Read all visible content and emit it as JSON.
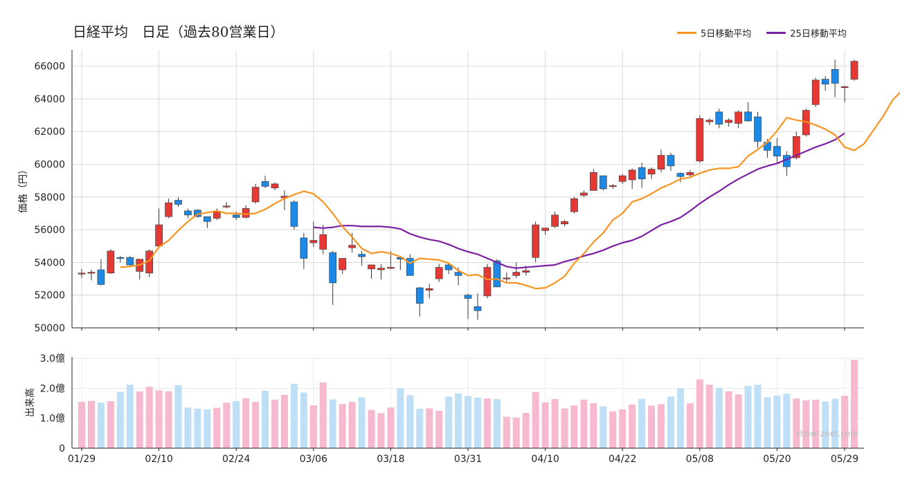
{
  "chart_data": [
    {
      "type": "candlestick",
      "title": "日経平均　日足（過去80営業日）",
      "ylabel": "価格（円）",
      "ylim": [
        50000,
        67000
      ],
      "yticks": [
        50000,
        52000,
        54000,
        56000,
        58000,
        60000,
        62000,
        64000,
        66000
      ],
      "grid": true,
      "legend": {
        "placement": "top-right",
        "entries": [
          "5日移動平均",
          "25日移動平均"
        ]
      },
      "colors": {
        "up": "#e53935",
        "down": "#1e88e5",
        "ma5": "#f7931e",
        "ma25": "#7b1fa2",
        "grid": "#d0d0d0"
      },
      "x_labels": [
        {
          "index": 0,
          "label": "01/29"
        },
        {
          "index": 8,
          "label": "02/10"
        },
        {
          "index": 16,
          "label": "02/24"
        },
        {
          "index": 24,
          "label": "03/06"
        },
        {
          "index": 32,
          "label": "03/18"
        },
        {
          "index": 40,
          "label": "03/31"
        },
        {
          "index": 48,
          "label": "04/10"
        },
        {
          "index": 56,
          "label": "04/22"
        },
        {
          "index": 64,
          "label": "05/08"
        },
        {
          "index": 72,
          "label": "05/20"
        },
        {
          "index": 79,
          "label": "05/29"
        }
      ],
      "ohlc": [
        [
          53300,
          53600,
          53050,
          53350
        ],
        [
          53350,
          53550,
          52900,
          53400
        ],
        [
          53550,
          54200,
          52600,
          52650
        ],
        [
          53350,
          54800,
          53300,
          54700
        ],
        [
          54300,
          54400,
          54000,
          54250
        ],
        [
          54300,
          54400,
          53700,
          53850
        ],
        [
          53450,
          54200,
          52950,
          54200
        ],
        [
          53350,
          54800,
          53100,
          54700
        ],
        [
          55000,
          57300,
          54900,
          56300
        ],
        [
          56800,
          57900,
          56700,
          57650
        ],
        [
          57800,
          58000,
          57400,
          57550
        ],
        [
          57150,
          57300,
          56700,
          56900
        ],
        [
          57200,
          57250,
          56750,
          56800
        ],
        [
          56800,
          56800,
          56100,
          56500
        ],
        [
          56700,
          57300,
          56600,
          57100
        ],
        [
          57400,
          57700,
          57300,
          57450
        ],
        [
          56900,
          57100,
          56600,
          56750
        ],
        [
          56750,
          57500,
          56700,
          57300
        ],
        [
          57700,
          58800,
          57600,
          58600
        ],
        [
          58950,
          59300,
          58550,
          58650
        ],
        [
          58550,
          58900,
          58400,
          58800
        ],
        [
          57950,
          58400,
          57200,
          58050
        ],
        [
          57700,
          57800,
          56000,
          56200
        ],
        [
          55500,
          55800,
          53600,
          54250
        ],
        [
          55200,
          56500,
          54950,
          55350
        ],
        [
          54800,
          56300,
          54500,
          55700
        ],
        [
          54600,
          54700,
          51400,
          52750
        ],
        [
          53550,
          54200,
          53300,
          54250
        ],
        [
          54900,
          55800,
          54600,
          55050
        ],
        [
          54500,
          54700,
          53800,
          54350
        ],
        [
          53600,
          53800,
          53000,
          53850
        ],
        [
          53550,
          53900,
          52950,
          53650
        ],
        [
          53700,
          54700,
          53600,
          53700
        ],
        [
          54300,
          54400,
          53550,
          54200
        ],
        [
          54250,
          54500,
          53300,
          53200
        ],
        [
          52450,
          52500,
          50700,
          51500
        ],
        [
          52300,
          52700,
          51800,
          52400
        ],
        [
          53000,
          53900,
          52800,
          53700
        ],
        [
          53850,
          53900,
          53300,
          53550
        ],
        [
          53400,
          53700,
          52600,
          53200
        ],
        [
          52000,
          52100,
          50550,
          51800
        ],
        [
          51300,
          52100,
          50500,
          51050
        ],
        [
          51950,
          53900,
          51800,
          53700
        ],
        [
          54100,
          54200,
          52500,
          52500
        ],
        [
          53000,
          53400,
          52800,
          53050
        ],
        [
          53200,
          54000,
          53050,
          53400
        ],
        [
          53400,
          53800,
          53200,
          53500
        ],
        [
          54300,
          56500,
          54000,
          56300
        ],
        [
          55950,
          56100,
          55700,
          56100
        ],
        [
          56200,
          57100,
          56100,
          56900
        ],
        [
          56350,
          56600,
          56200,
          56500
        ],
        [
          57100,
          58000,
          57000,
          57900
        ],
        [
          58100,
          58400,
          58000,
          58250
        ],
        [
          58400,
          59700,
          58400,
          59500
        ],
        [
          59300,
          59300,
          58400,
          58500
        ],
        [
          58700,
          58800,
          58500,
          58700
        ],
        [
          58950,
          59400,
          58800,
          59300
        ],
        [
          59050,
          59750,
          58500,
          59650
        ],
        [
          59800,
          60100,
          58550,
          59100
        ],
        [
          59400,
          59800,
          59100,
          59700
        ],
        [
          59700,
          60900,
          59500,
          60550
        ],
        [
          60550,
          60700,
          59600,
          59900
        ],
        [
          59450,
          59500,
          58900,
          59250
        ],
        [
          59350,
          59650,
          59200,
          59500
        ],
        [
          60200,
          63000,
          60100,
          62800
        ],
        [
          62600,
          62800,
          62400,
          62700
        ],
        [
          63200,
          63400,
          62200,
          62450
        ],
        [
          62550,
          62800,
          62300,
          62700
        ],
        [
          62500,
          63300,
          62200,
          63200
        ],
        [
          63200,
          63800,
          62600,
          62650
        ],
        [
          62900,
          63200,
          61000,
          61400
        ],
        [
          61350,
          61550,
          60400,
          60850
        ],
        [
          61100,
          61600,
          60100,
          60500
        ],
        [
          60550,
          60800,
          59300,
          59850
        ],
        [
          60400,
          62000,
          60300,
          61700
        ],
        [
          61800,
          63400,
          61700,
          63300
        ],
        [
          63650,
          65300,
          63500,
          65150
        ],
        [
          65200,
          65400,
          64500,
          64900
        ],
        [
          65800,
          66400,
          64100,
          64950
        ],
        [
          64700,
          64800,
          63800,
          64750
        ],
        [
          65200,
          66400,
          65100,
          66300
        ]
      ],
      "ma5_start": 4,
      "ma5": [
        53700,
        53750,
        53850,
        54100,
        54950,
        55350,
        55950,
        56500,
        56950,
        57050,
        57150,
        57000,
        57000,
        56950,
        57000,
        57250,
        57600,
        57900,
        58150,
        58350,
        58200,
        57700,
        57000,
        56200,
        55550,
        54850,
        54550,
        54650,
        54550,
        54350,
        53950,
        54250,
        54200,
        54150,
        53950,
        53500,
        53200,
        53250,
        52950,
        53000,
        52750,
        52750,
        52600,
        52400,
        52450,
        52750,
        53150,
        53950,
        54550,
        55250,
        55800,
        56600,
        57000,
        57700,
        57900,
        58200,
        58550,
        58800,
        59100,
        59200,
        59450,
        59650,
        59750,
        59750,
        59850,
        60500,
        60900,
        61350,
        62050,
        62850,
        62700,
        62600,
        62400,
        62150,
        61800,
        61050,
        60850,
        61250,
        62100,
        62950,
        63950,
        64550,
        65150
      ],
      "ma25_start": 24,
      "ma25": [
        56150,
        56100,
        56150,
        56250,
        56250,
        56200,
        56200,
        56200,
        56150,
        56050,
        55750,
        55550,
        55400,
        55300,
        55100,
        54850,
        54650,
        54500,
        54250,
        54000,
        53750,
        53650,
        53700,
        53750,
        53800,
        53850,
        54050,
        54200,
        54400,
        54550,
        54750,
        55000,
        55200,
        55350,
        55600,
        55950,
        56300,
        56500,
        56750,
        57150,
        57600,
        58000,
        58350,
        58750,
        59100,
        59400,
        59700,
        59900,
        60050,
        60300,
        60550,
        60800,
        61050,
        61250,
        61500,
        61900
      ]
    },
    {
      "type": "bar",
      "ylabel": "出来高",
      "ylim": [
        0,
        3.05
      ],
      "ytick_labels": [
        "0",
        "1.0億",
        "2.0億",
        "3.0億"
      ],
      "yticks": [
        0,
        1,
        2,
        3
      ],
      "unit": "億",
      "colors": {
        "up": "#f7b9cf",
        "down": "#bfdff7"
      },
      "values": [
        1.55,
        1.58,
        1.52,
        1.57,
        1.88,
        2.12,
        1.9,
        2.05,
        1.93,
        1.9,
        2.1,
        1.36,
        1.32,
        1.3,
        1.35,
        1.52,
        1.57,
        1.67,
        1.55,
        1.92,
        1.62,
        1.78,
        2.15,
        1.86,
        1.43,
        2.2,
        1.63,
        1.48,
        1.55,
        1.7,
        1.28,
        1.17,
        1.36,
        2.0,
        1.77,
        1.32,
        1.33,
        1.25,
        1.72,
        1.83,
        1.74,
        1.69,
        1.66,
        1.64,
        1.05,
        1.02,
        1.18,
        1.87,
        1.53,
        1.64,
        1.33,
        1.43,
        1.62,
        1.5,
        1.4,
        1.23,
        1.3,
        1.46,
        1.65,
        1.42,
        1.47,
        1.73,
        2.0,
        1.5,
        2.3,
        2.12,
        2.02,
        1.9,
        1.8,
        2.08,
        2.12,
        1.7,
        1.76,
        1.82,
        1.66,
        1.6,
        1.62,
        1.56,
        1.65,
        1.75,
        2.95
      ]
    }
  ],
  "watermark": "show-zeet.com"
}
